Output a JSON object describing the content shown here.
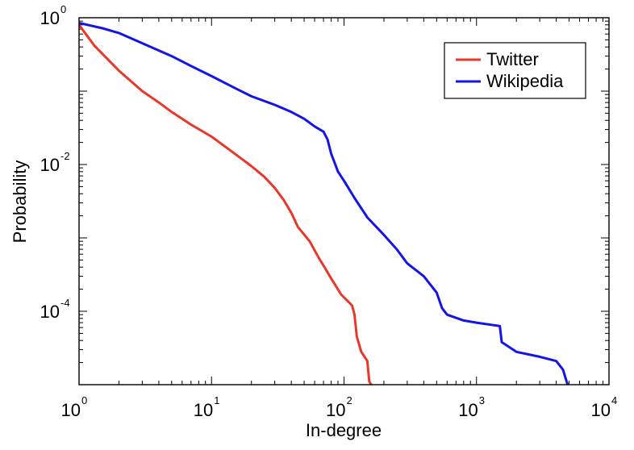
{
  "chart_data": {
    "type": "line",
    "title": "",
    "xlabel": "In-degree",
    "ylabel": "Probability",
    "xscale": "log",
    "yscale": "log",
    "xlim": [
      1,
      10000
    ],
    "ylim": [
      1e-05,
      1
    ],
    "x_ticks": [
      {
        "base": "10",
        "exp": "0",
        "value": 1
      },
      {
        "base": "10",
        "exp": "1",
        "value": 10
      },
      {
        "base": "10",
        "exp": "2",
        "value": 100
      },
      {
        "base": "10",
        "exp": "3",
        "value": 1000
      },
      {
        "base": "10",
        "exp": "4",
        "value": 10000
      }
    ],
    "y_ticks": [
      {
        "base": "10",
        "exp": "0",
        "value": 1
      },
      {
        "base": "10",
        "exp": "-2",
        "value": 0.01
      },
      {
        "base": "10",
        "exp": "-4",
        "value": 0.0001
      }
    ],
    "legend_position": "top-right",
    "grid": false,
    "series": [
      {
        "name": "Twitter",
        "color": "#e8372b",
        "points": [
          [
            1,
            0.8
          ],
          [
            1.3,
            0.42
          ],
          [
            2,
            0.19
          ],
          [
            3,
            0.1
          ],
          [
            4,
            0.07
          ],
          [
            5,
            0.052
          ],
          [
            7,
            0.035
          ],
          [
            10,
            0.024
          ],
          [
            15,
            0.014
          ],
          [
            20,
            0.0095
          ],
          [
            25,
            0.0068
          ],
          [
            30,
            0.0048
          ],
          [
            35,
            0.0033
          ],
          [
            40,
            0.0022
          ],
          [
            45,
            0.0014
          ],
          [
            55,
            0.0009
          ],
          [
            65,
            0.00052
          ],
          [
            70,
            0.00042
          ],
          [
            80,
            0.00028
          ],
          [
            95,
            0.00017
          ],
          [
            115,
            0.00012
          ],
          [
            120,
            9e-05
          ],
          [
            125,
            4.5e-05
          ],
          [
            135,
            2.8e-05
          ],
          [
            150,
            2.1e-05
          ],
          [
            155,
            1.1e-05
          ],
          [
            170,
            8.5e-06
          ],
          [
            190,
            6.5e-06
          ],
          [
            200,
            5.7e-06
          ]
        ]
      },
      {
        "name": "Wikipedia",
        "color": "#1414e8",
        "points": [
          [
            1,
            0.85
          ],
          [
            1.5,
            0.72
          ],
          [
            2,
            0.62
          ],
          [
            3,
            0.45
          ],
          [
            5,
            0.3
          ],
          [
            7,
            0.22
          ],
          [
            10,
            0.16
          ],
          [
            15,
            0.11
          ],
          [
            20,
            0.085
          ],
          [
            30,
            0.065
          ],
          [
            40,
            0.052
          ],
          [
            50,
            0.042
          ],
          [
            60,
            0.033
          ],
          [
            70,
            0.028
          ],
          [
            75,
            0.022
          ],
          [
            80,
            0.014
          ],
          [
            90,
            0.008
          ],
          [
            100,
            0.006
          ],
          [
            120,
            0.0035
          ],
          [
            150,
            0.0019
          ],
          [
            200,
            0.0011
          ],
          [
            250,
            0.0007
          ],
          [
            300,
            0.00045
          ],
          [
            400,
            0.0003
          ],
          [
            500,
            0.00018
          ],
          [
            550,
            0.00011
          ],
          [
            600,
            9e-05
          ],
          [
            800,
            7.5e-05
          ],
          [
            1000,
            7e-05
          ],
          [
            1500,
            6.3e-05
          ],
          [
            1550,
            3.8e-05
          ],
          [
            2000,
            2.8e-05
          ],
          [
            3000,
            2.4e-05
          ],
          [
            4000,
            2.1e-05
          ],
          [
            4500,
            1.6e-05
          ],
          [
            5000,
            8.5e-06
          ]
        ]
      }
    ]
  }
}
